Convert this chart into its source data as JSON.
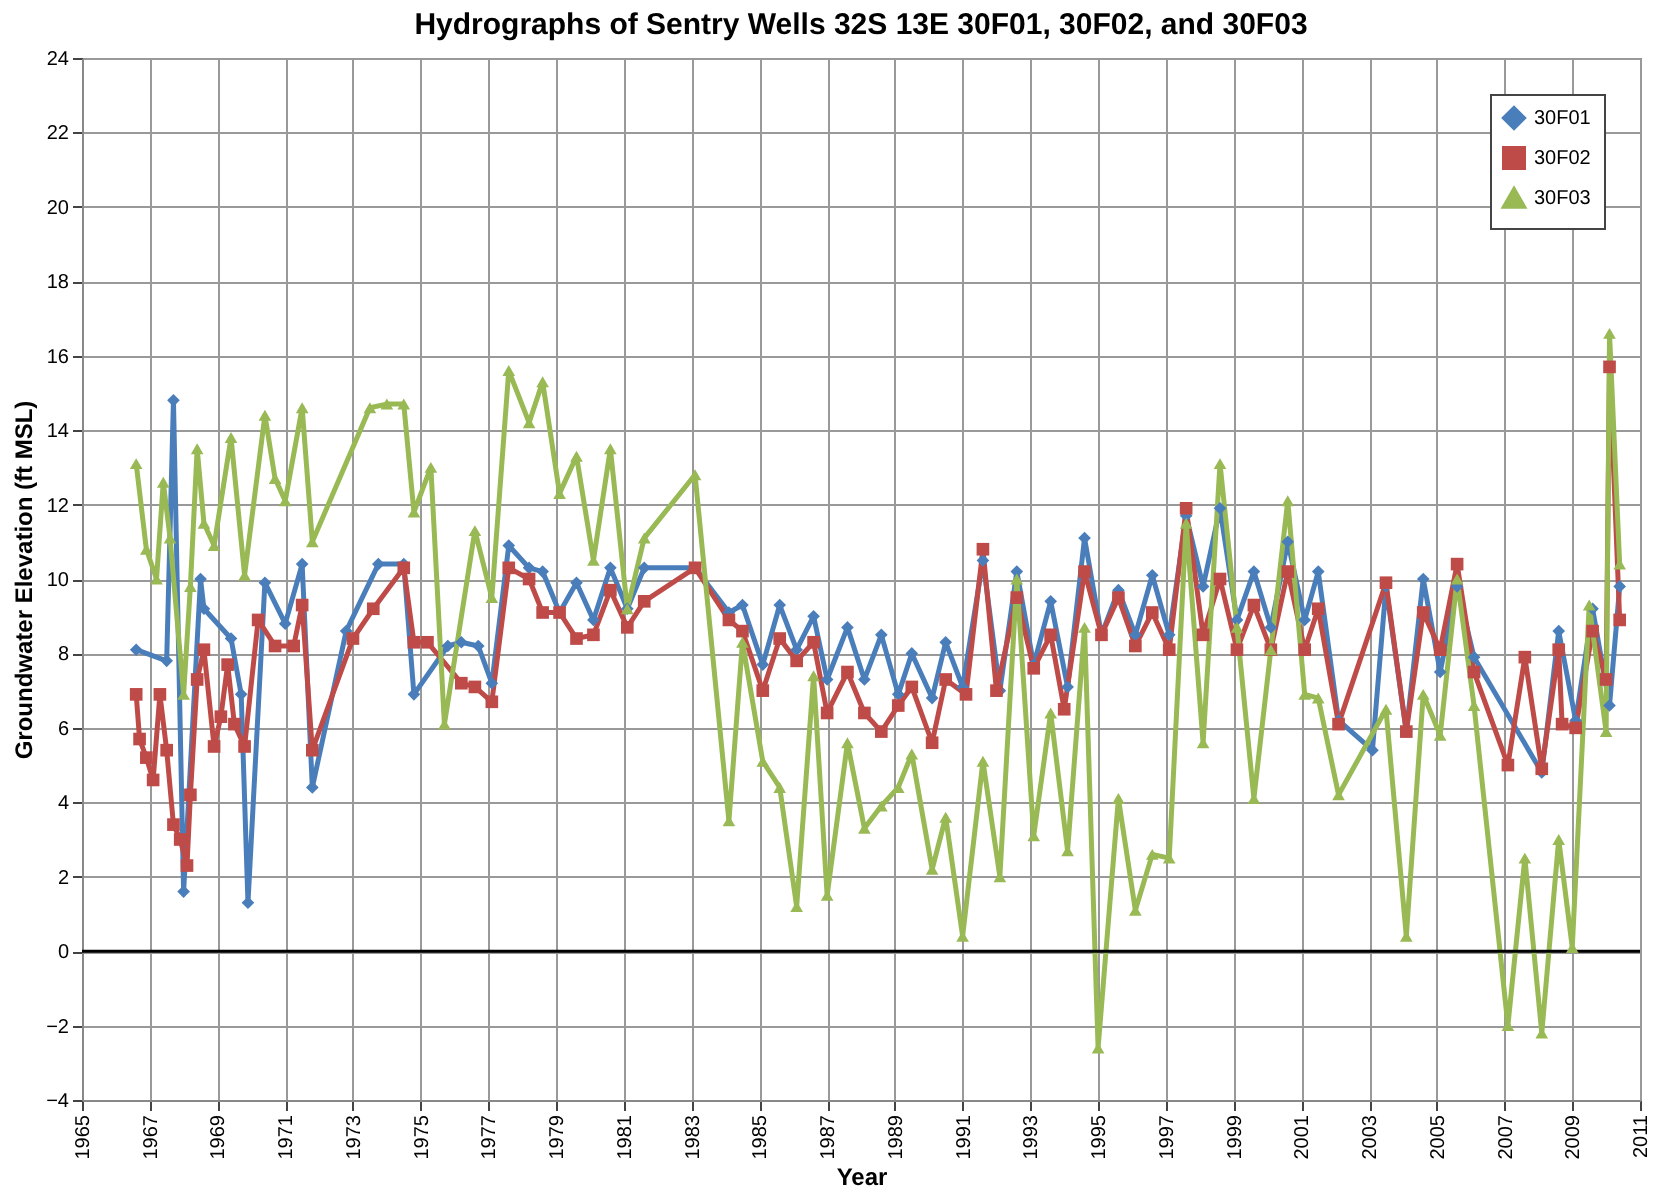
{
  "chart_data": {
    "type": "line",
    "title": "Hydrographs of Sentry Wells 32S 13E 30F01, 30F02, and 30F03",
    "xlabel": "Year",
    "ylabel": "Groundwater Elevation (ft MSL)",
    "xlim": [
      1965,
      2011
    ],
    "xticks": [
      1965,
      1967,
      1969,
      1971,
      1973,
      1975,
      1977,
      1979,
      1981,
      1983,
      1985,
      1987,
      1989,
      1991,
      1993,
      1995,
      1997,
      1999,
      2001,
      2003,
      2005,
      2007,
      2009,
      2011
    ],
    "ylim": [
      -4,
      24
    ],
    "yticks": [
      -4,
      -2,
      0,
      2,
      4,
      6,
      8,
      10,
      12,
      14,
      16,
      18,
      20,
      22,
      24
    ],
    "grid": true,
    "legend": "top right",
    "line_style": "solid",
    "ref_lines": [
      {
        "axis": "y",
        "value": 0,
        "color": "#000000"
      }
    ],
    "series": [
      {
        "name": "30F01",
        "color": "#4a7ebb",
        "marker": "diamond",
        "x": [
          1966.6,
          1967.5,
          1967.7,
          1968.0,
          1968.5,
          1968.6,
          1969.4,
          1969.7,
          1969.9,
          1970.4,
          1971.0,
          1971.5,
          1971.8,
          1972.8,
          1973.75,
          1974.5,
          1974.8,
          1975.8,
          1976.2,
          1976.7,
          1977.1,
          1977.6,
          1978.2,
          1978.6,
          1979.1,
          1979.6,
          1980.1,
          1980.6,
          1981.1,
          1981.6,
          1983.1,
          1984.1,
          1984.5,
          1985.1,
          1985.6,
          1986.1,
          1986.6,
          1987.0,
          1987.6,
          1988.1,
          1988.6,
          1989.1,
          1989.5,
          1990.1,
          1990.5,
          1991.0,
          1991.6,
          1992.1,
          1992.6,
          1993.1,
          1993.6,
          1994.1,
          1994.6,
          1995.1,
          1995.6,
          1996.1,
          1996.6,
          1997.1,
          1997.6,
          1998.1,
          1998.6,
          1999.1,
          1999.6,
          2000.1,
          2000.6,
          2001.1,
          2001.5,
          2002.1,
          2003.1,
          2003.5,
          2004.1,
          2004.6,
          2005.1,
          2005.6,
          2006.1,
          2008.1,
          2008.6,
          2009.1,
          2009.6,
          2010.1,
          2010.4
        ],
        "values": [
          8.1,
          7.8,
          14.8,
          1.6,
          10.0,
          9.2,
          8.4,
          6.9,
          1.3,
          9.9,
          8.8,
          10.4,
          4.4,
          8.6,
          10.4,
          10.4,
          6.9,
          8.2,
          8.3,
          8.2,
          7.2,
          10.9,
          10.3,
          10.2,
          9.1,
          9.9,
          8.9,
          10.3,
          9.2,
          10.3,
          10.3,
          9.1,
          9.3,
          7.7,
          9.3,
          8.1,
          9.0,
          7.3,
          8.7,
          7.3,
          8.5,
          6.9,
          8.0,
          6.8,
          8.3,
          7.1,
          10.5,
          7.0,
          10.2,
          7.7,
          9.4,
          7.1,
          11.1,
          8.5,
          9.7,
          8.5,
          10.1,
          8.5,
          11.7,
          9.8,
          11.9,
          8.9,
          10.2,
          8.7,
          11.0,
          8.9,
          10.2,
          6.2,
          5.4,
          9.8,
          5.9,
          10.0,
          7.5,
          9.8,
          7.9,
          4.8,
          8.6,
          6.2,
          9.2,
          6.6,
          9.8
        ]
      },
      {
        "name": "30F02",
        "color": "#be4b48",
        "marker": "square",
        "x": [
          1966.6,
          1966.7,
          1966.9,
          1967.1,
          1967.3,
          1967.5,
          1967.7,
          1967.9,
          1968.1,
          1968.2,
          1968.4,
          1968.6,
          1968.9,
          1969.1,
          1969.3,
          1969.5,
          1969.8,
          1970.2,
          1970.7,
          1971.25,
          1971.5,
          1971.8,
          1973.0,
          1973.6,
          1974.5,
          1974.8,
          1975.2,
          1976.2,
          1976.6,
          1977.1,
          1977.6,
          1978.2,
          1978.6,
          1979.1,
          1979.6,
          1980.1,
          1980.6,
          1981.1,
          1981.6,
          1983.1,
          1984.1,
          1984.5,
          1985.1,
          1985.6,
          1986.1,
          1986.6,
          1987.0,
          1987.6,
          1988.1,
          1988.6,
          1989.1,
          1989.5,
          1990.1,
          1990.5,
          1991.1,
          1991.6,
          1992.0,
          1992.6,
          1993.1,
          1993.6,
          1994.0,
          1994.6,
          1995.1,
          1995.6,
          1996.1,
          1996.6,
          1997.1,
          1997.6,
          1998.1,
          1998.6,
          1999.1,
          1999.6,
          2000.1,
          2000.6,
          2001.1,
          2001.5,
          2002.1,
          2003.5,
          2004.1,
          2004.6,
          2005.1,
          2005.6,
          2006.1,
          2007.1,
          2007.6,
          2008.1,
          2008.6,
          2008.7,
          2009.1,
          2009.6,
          2010.0,
          2010.1,
          2010.4
        ],
        "values": [
          6.9,
          5.7,
          5.2,
          4.6,
          6.9,
          5.4,
          3.4,
          3.0,
          2.3,
          4.2,
          7.3,
          8.1,
          5.5,
          6.3,
          7.7,
          6.1,
          5.5,
          8.9,
          8.2,
          8.2,
          9.3,
          5.4,
          8.4,
          9.2,
          10.3,
          8.3,
          8.3,
          7.2,
          7.1,
          6.7,
          10.3,
          10.0,
          9.1,
          9.1,
          8.4,
          8.5,
          9.7,
          8.7,
          9.4,
          10.3,
          8.9,
          8.6,
          7.0,
          8.4,
          7.8,
          8.3,
          6.4,
          7.5,
          6.4,
          5.9,
          6.6,
          7.1,
          5.6,
          7.3,
          6.9,
          10.8,
          7.0,
          9.5,
          7.6,
          8.5,
          6.5,
          10.2,
          8.5,
          9.5,
          8.2,
          9.1,
          8.1,
          11.9,
          8.5,
          10.0,
          8.1,
          9.3,
          8.1,
          10.2,
          8.1,
          9.2,
          6.1,
          9.9,
          5.9,
          9.1,
          8.1,
          10.4,
          7.5,
          5.0,
          7.9,
          4.9,
          8.1,
          6.1,
          6.0,
          8.6,
          7.3,
          15.7,
          8.9
        ]
      },
      {
        "name": "30F03",
        "color": "#98b954",
        "marker": "triangle",
        "x": [
          1966.6,
          1966.9,
          1967.2,
          1967.4,
          1967.6,
          1968.0,
          1968.2,
          1968.4,
          1968.6,
          1968.9,
          1969.4,
          1969.8,
          1970.4,
          1970.7,
          1971.0,
          1971.5,
          1971.8,
          1973.5,
          1974.0,
          1974.5,
          1974.8,
          1975.3,
          1975.7,
          1976.6,
          1977.1,
          1977.6,
          1978.2,
          1978.6,
          1979.1,
          1979.6,
          1980.1,
          1980.6,
          1981.1,
          1981.6,
          1983.1,
          1984.1,
          1984.5,
          1985.1,
          1985.6,
          1986.1,
          1986.6,
          1987.0,
          1987.6,
          1988.1,
          1988.6,
          1989.1,
          1989.5,
          1990.1,
          1990.5,
          1991.0,
          1991.6,
          1992.1,
          1992.6,
          1993.1,
          1993.6,
          1994.1,
          1994.6,
          1995.0,
          1995.6,
          1996.1,
          1996.6,
          1997.1,
          1997.6,
          1998.1,
          1998.6,
          1999.1,
          1999.6,
          2000.1,
          2000.6,
          2001.1,
          2001.5,
          2002.1,
          2003.5,
          2004.1,
          2004.6,
          2005.1,
          2005.6,
          2006.1,
          2007.1,
          2007.6,
          2008.1,
          2008.6,
          2009.0,
          2009.5,
          2010.0,
          2010.1,
          2010.4
        ],
        "values": [
          13.1,
          10.8,
          10.0,
          12.6,
          11.1,
          6.9,
          9.8,
          13.5,
          11.5,
          10.9,
          13.8,
          10.1,
          14.4,
          12.7,
          12.1,
          14.6,
          11.0,
          14.6,
          14.7,
          14.7,
          11.8,
          13.0,
          6.1,
          11.3,
          9.5,
          15.6,
          14.2,
          15.3,
          12.3,
          13.3,
          10.5,
          13.5,
          9.2,
          11.1,
          12.8,
          3.5,
          8.3,
          5.1,
          4.4,
          1.2,
          7.4,
          1.5,
          5.6,
          3.3,
          3.9,
          4.4,
          5.3,
          2.2,
          3.6,
          0.4,
          5.1,
          2.0,
          10.0,
          3.1,
          6.4,
          2.7,
          8.7,
          -2.6,
          4.1,
          1.1,
          2.6,
          2.5,
          11.5,
          5.6,
          13.1,
          8.7,
          4.1,
          8.1,
          12.1,
          6.9,
          6.8,
          4.2,
          6.5,
          0.4,
          6.9,
          5.8,
          10.0,
          6.6,
          -2.0,
          2.5,
          -2.2,
          3.0,
          0.1,
          9.3,
          5.9,
          16.6,
          10.4
        ]
      }
    ]
  }
}
